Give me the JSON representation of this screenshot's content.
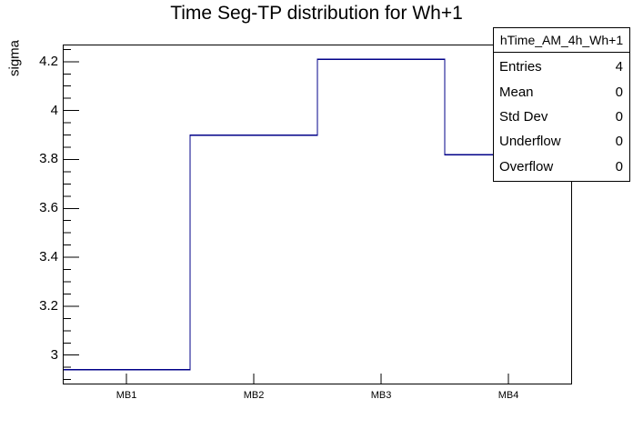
{
  "title": "Time Seg-TP distribution for Wh+1",
  "chart_data": {
    "type": "step-histogram",
    "title": "Time Seg-TP distribution for Wh+1",
    "categories": [
      "MB1",
      "MB2",
      "MB3",
      "MB4"
    ],
    "values": [
      2.94,
      3.9,
      4.21,
      3.82
    ],
    "xlabel": "",
    "ylabel": "sigma",
    "ylim": [
      2.88,
      4.27
    ],
    "y_major_ticks": [
      3.0,
      3.2,
      3.4,
      3.6,
      3.8,
      4.0,
      4.2
    ],
    "y_tick_labels": [
      "3",
      "3.2",
      "3.4",
      "3.6",
      "3.8",
      "4",
      "4.2"
    ],
    "y_minor_step": 0.05,
    "grid": false,
    "legend_position": "none",
    "line_color": "#000088",
    "frame_color": "#000000",
    "stats_box": {
      "header": "hTime_AM_4h_Wh+1",
      "rows": [
        {
          "label": "Entries",
          "value": "4"
        },
        {
          "label": "Mean",
          "value": "0"
        },
        {
          "label": "Std Dev",
          "value": "0"
        },
        {
          "label": "Underflow",
          "value": "0"
        },
        {
          "label": "Overflow",
          "value": "0"
        }
      ]
    }
  }
}
